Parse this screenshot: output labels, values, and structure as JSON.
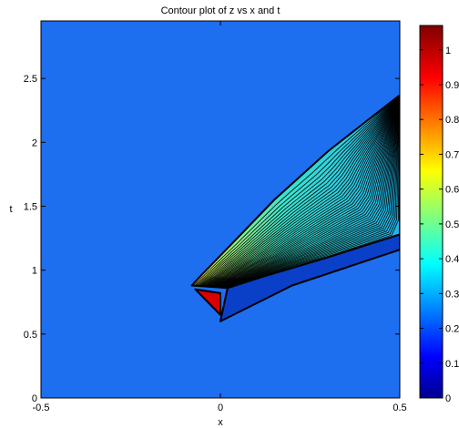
{
  "chart_data": {
    "type": "heatmap",
    "title": "Contour plot of z vs x and t",
    "xlabel": "x",
    "ylabel": "t",
    "xlim": [
      -0.5,
      0.5
    ],
    "ylim": [
      0,
      2.95
    ],
    "xticks": [
      "-0.5",
      "0",
      "0.5"
    ],
    "yticks": [
      "0",
      "0.5",
      "1",
      "1.5",
      "2",
      "2.5"
    ],
    "colorbar": {
      "range": [
        0,
        1.07
      ],
      "ticks": [
        "0",
        "0.1",
        "0.2",
        "0.3",
        "0.4",
        "0.5",
        "0.6",
        "0.7",
        "0.8",
        "0.9",
        "1"
      ],
      "colormap": "jet"
    },
    "background_level": 0.25,
    "regions": [
      {
        "label": "upper fan region",
        "level_range": [
          0.22,
          0.7
        ],
        "boundary": [
          [
            -0.08,
            0.88
          ],
          [
            -0.05,
            0.97
          ],
          [
            0.03,
            1.2
          ],
          [
            0.15,
            1.55
          ],
          [
            0.3,
            1.93
          ],
          [
            0.5,
            2.37
          ],
          [
            0.5,
            1.28
          ],
          [
            0.3,
            1.1
          ],
          [
            0.12,
            0.95
          ],
          [
            0.02,
            0.86
          ]
        ]
      },
      {
        "label": "lower band region",
        "level": 0.1,
        "boundary": [
          [
            0.02,
            0.86
          ],
          [
            0.12,
            0.95
          ],
          [
            0.3,
            1.1
          ],
          [
            0.5,
            1.28
          ],
          [
            0.5,
            1.16
          ],
          [
            0.2,
            0.88
          ],
          [
            0.0,
            0.6
          ]
        ]
      },
      {
        "label": "tip triangle",
        "level": 0.98,
        "boundary": [
          [
            -0.07,
            0.85
          ],
          [
            0.0,
            0.82
          ],
          [
            0.0,
            0.65
          ]
        ]
      }
    ],
    "contour_line_count": 40,
    "colors": {
      "background": "#1e6ef0",
      "band": "#0a3fc8",
      "tip": "#d80000",
      "line": "#000000"
    }
  }
}
